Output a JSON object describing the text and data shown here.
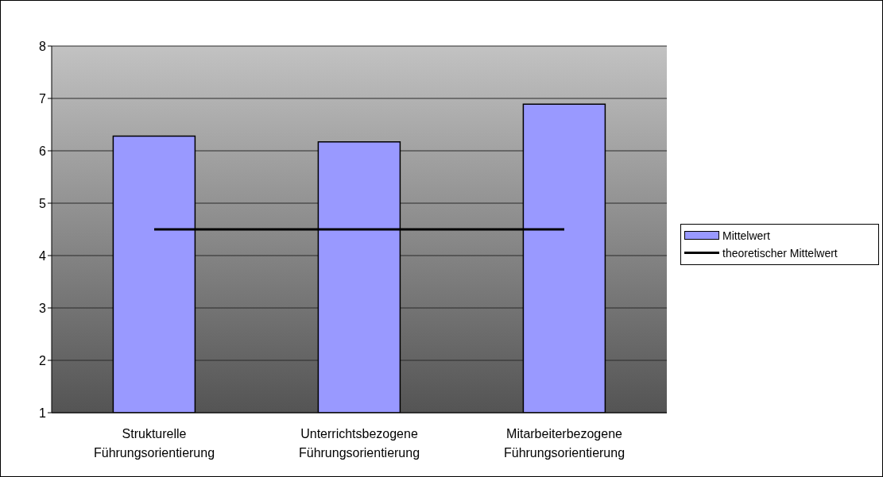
{
  "chart_data": {
    "type": "bar",
    "categories": [
      "Strukturelle Führungsorientierung",
      "Unterrichtsbezogene Führungsorientierung",
      "Mitarbeiterbezogene Führungsorientierung"
    ],
    "series": [
      {
        "name": "Mittelwert",
        "color": "#9999ff",
        "values": [
          6.28,
          6.17,
          6.89
        ]
      },
      {
        "name": "theoretischer Mittelwert",
        "type": "line",
        "color": "#000000",
        "values": [
          4.5,
          4.5,
          4.5
        ]
      }
    ],
    "ylim": [
      1,
      8
    ],
    "yticks": [
      1,
      2,
      3,
      4,
      5,
      6,
      7,
      8
    ],
    "grid": "y",
    "legend": "right"
  }
}
